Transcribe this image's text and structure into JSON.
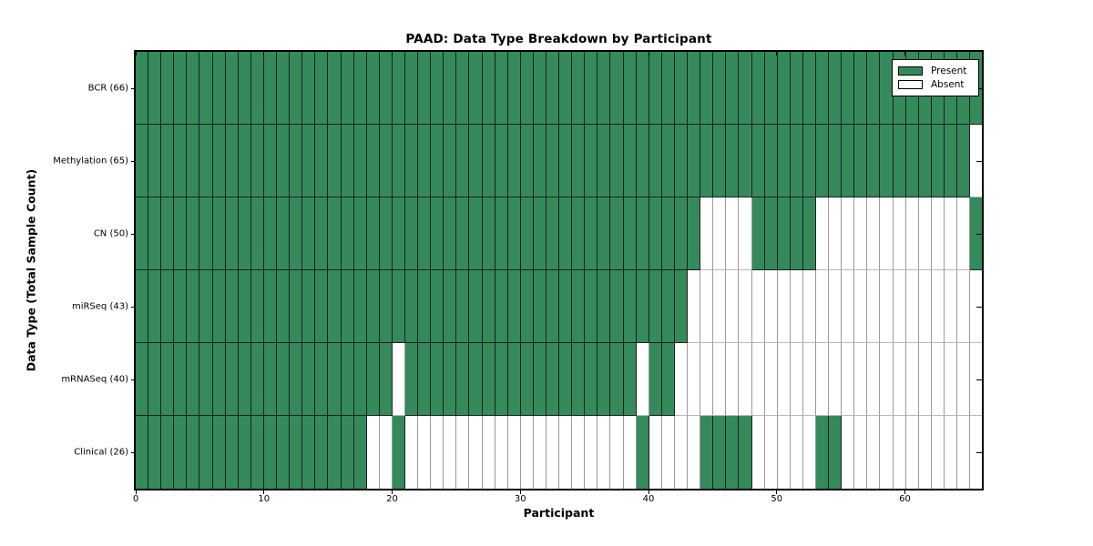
{
  "title": "PAAD: Data Type Breakdown by Participant",
  "xlabel": "Participant",
  "ylabel": "Data Type (Total Sample Count)",
  "legend": {
    "present_label": "Present",
    "absent_label": "Absent",
    "position": "upper right"
  },
  "colors": {
    "present": "#358a5c",
    "absent": "#ffffff",
    "grid_present": "#1f1f1f",
    "grid_absent": "#9a9a9a",
    "spine": "#000000"
  },
  "x_ticks": [
    0,
    10,
    20,
    30,
    40,
    50,
    60
  ],
  "chart_data": {
    "type": "heatmap",
    "title": "PAAD: Data Type Breakdown by Participant",
    "xlabel": "Participant",
    "ylabel": "Data Type (Total Sample Count)",
    "x_range": [
      0,
      66
    ],
    "n_participants": 66,
    "legend_entries": [
      "Present",
      "Absent"
    ],
    "legend_position": "upper right",
    "grid": "cell-borders",
    "value_encoding": "1 = Present (green), 0 = Absent (white)",
    "rows": [
      {
        "label": "BCR (66)",
        "name": "BCR",
        "total": 66,
        "values": [
          1,
          1,
          1,
          1,
          1,
          1,
          1,
          1,
          1,
          1,
          1,
          1,
          1,
          1,
          1,
          1,
          1,
          1,
          1,
          1,
          1,
          1,
          1,
          1,
          1,
          1,
          1,
          1,
          1,
          1,
          1,
          1,
          1,
          1,
          1,
          1,
          1,
          1,
          1,
          1,
          1,
          1,
          1,
          1,
          1,
          1,
          1,
          1,
          1,
          1,
          1,
          1,
          1,
          1,
          1,
          1,
          1,
          1,
          1,
          1,
          1,
          1,
          1,
          1,
          1,
          1
        ]
      },
      {
        "label": "Methylation (65)",
        "name": "Methylation",
        "total": 65,
        "values": [
          1,
          1,
          1,
          1,
          1,
          1,
          1,
          1,
          1,
          1,
          1,
          1,
          1,
          1,
          1,
          1,
          1,
          1,
          1,
          1,
          1,
          1,
          1,
          1,
          1,
          1,
          1,
          1,
          1,
          1,
          1,
          1,
          1,
          1,
          1,
          1,
          1,
          1,
          1,
          1,
          1,
          1,
          1,
          1,
          1,
          1,
          1,
          1,
          1,
          1,
          1,
          1,
          1,
          1,
          1,
          1,
          1,
          1,
          1,
          1,
          1,
          1,
          1,
          1,
          1,
          0
        ]
      },
      {
        "label": "CN (50)",
        "name": "CN",
        "total": 50,
        "values": [
          1,
          1,
          1,
          1,
          1,
          1,
          1,
          1,
          1,
          1,
          1,
          1,
          1,
          1,
          1,
          1,
          1,
          1,
          1,
          1,
          1,
          1,
          1,
          1,
          1,
          1,
          1,
          1,
          1,
          1,
          1,
          1,
          1,
          1,
          1,
          1,
          1,
          1,
          1,
          1,
          1,
          1,
          1,
          1,
          0,
          0,
          0,
          0,
          1,
          1,
          1,
          1,
          1,
          0,
          0,
          0,
          0,
          0,
          0,
          0,
          0,
          0,
          0,
          0,
          0,
          1
        ]
      },
      {
        "label": "miRSeq (43)",
        "name": "miRSeq",
        "total": 43,
        "values": [
          1,
          1,
          1,
          1,
          1,
          1,
          1,
          1,
          1,
          1,
          1,
          1,
          1,
          1,
          1,
          1,
          1,
          1,
          1,
          1,
          1,
          1,
          1,
          1,
          1,
          1,
          1,
          1,
          1,
          1,
          1,
          1,
          1,
          1,
          1,
          1,
          1,
          1,
          1,
          1,
          1,
          1,
          1,
          0,
          0,
          0,
          0,
          0,
          0,
          0,
          0,
          0,
          0,
          0,
          0,
          0,
          0,
          0,
          0,
          0,
          0,
          0,
          0,
          0,
          0,
          0
        ]
      },
      {
        "label": "mRNASeq (40)",
        "name": "mRNASeq",
        "total": 40,
        "values": [
          1,
          1,
          1,
          1,
          1,
          1,
          1,
          1,
          1,
          1,
          1,
          1,
          1,
          1,
          1,
          1,
          1,
          1,
          1,
          1,
          0,
          1,
          1,
          1,
          1,
          1,
          1,
          1,
          1,
          1,
          1,
          1,
          1,
          1,
          1,
          1,
          1,
          1,
          1,
          0,
          1,
          1,
          0,
          0,
          0,
          0,
          0,
          0,
          0,
          0,
          0,
          0,
          0,
          0,
          0,
          0,
          0,
          0,
          0,
          0,
          0,
          0,
          0,
          0,
          0,
          0
        ]
      },
      {
        "label": "Clinical (26)",
        "name": "Clinical",
        "total": 26,
        "values": [
          1,
          1,
          1,
          1,
          1,
          1,
          1,
          1,
          1,
          1,
          1,
          1,
          1,
          1,
          1,
          1,
          1,
          1,
          0,
          0,
          1,
          0,
          0,
          0,
          0,
          0,
          0,
          0,
          0,
          0,
          0,
          0,
          0,
          0,
          0,
          0,
          0,
          0,
          0,
          1,
          0,
          0,
          0,
          0,
          1,
          1,
          1,
          1,
          0,
          0,
          0,
          0,
          0,
          1,
          1,
          0,
          0,
          0,
          0,
          0,
          0,
          0,
          0,
          0,
          0,
          0
        ]
      }
    ]
  }
}
